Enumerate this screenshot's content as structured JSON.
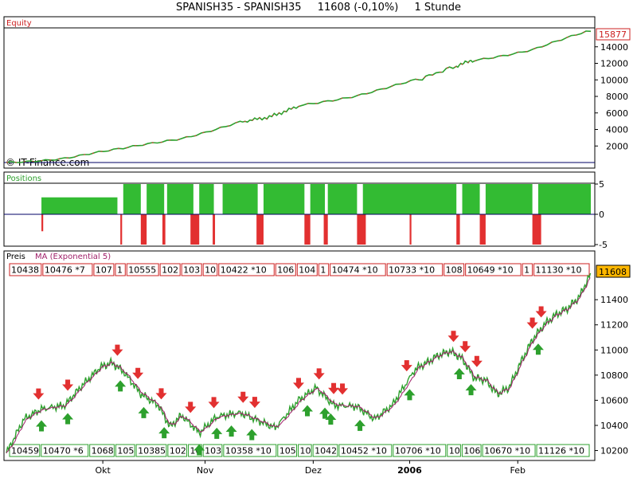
{
  "header": {
    "symbol": "SPANISH35 - SPANISH35",
    "price_change": "11608 (-0,10%)",
    "timeframe": "1 Stunde"
  },
  "colors": {
    "up_candle": "#2da02d",
    "down_candle": "#e23030",
    "positions_fill": "#33bb33",
    "positions_short": "#e23030",
    "ma_line": "#a0206a",
    "buy_arrow": "#2da02d",
    "sell_arrow": "#e23030",
    "last_price_box": "#ffb700"
  },
  "equity_panel": {
    "label": "Equity",
    "watermark": "© IT-Finance.com",
    "last_value": "15877",
    "y_ticks": [
      "14000",
      "12000",
      "10000",
      "8000",
      "6000",
      "4000",
      "2000"
    ]
  },
  "positions_panel": {
    "label": "Positions",
    "y_ticks": [
      "5",
      "0",
      "-5"
    ]
  },
  "price_panel": {
    "label": "Preis",
    "indicator": "MA (Exponential 5)",
    "last_value": "11608",
    "y_ticks": [
      "11400",
      "11200",
      "11000",
      "10800",
      "10600",
      "10400",
      "10200"
    ],
    "x_labels": [
      "Okt",
      "Nov",
      "Dez",
      "2006",
      "Feb"
    ],
    "top_boxes": [
      "10438",
      "10476 *7",
      "107",
      "1",
      "10555",
      "102",
      "103",
      "10",
      "10422 *10",
      "106",
      "104",
      "1",
      "10474 *10",
      "10733 *10",
      "108",
      "10649 *10",
      "1",
      "11130 *10"
    ],
    "bottom_boxes": [
      "10459",
      "10470 *6",
      "1068",
      "105",
      "10385",
      "102",
      "10",
      "103",
      "10358 *10",
      "105",
      "10",
      "1042",
      "10452 *10",
      "10706 *10",
      "10",
      "106",
      "10670 *10",
      "11126 *10"
    ]
  },
  "chart_data": [
    {
      "type": "line",
      "title": "Equity",
      "ylim": [
        0,
        16000
      ],
      "x": [
        0,
        10,
        20,
        30,
        40,
        45,
        50,
        60,
        70,
        77,
        80,
        90,
        100
      ],
      "values": [
        0,
        600,
        1600,
        3000,
        4900,
        5500,
        6800,
        8200,
        9900,
        11700,
        12400,
        13700,
        15877
      ]
    },
    {
      "type": "bar",
      "title": "Positions",
      "ylim": [
        -5,
        5
      ],
      "series": [
        {
          "values_long": [
            {
              "from": 6,
              "to": 19,
              "value": 2.8
            },
            {
              "from": 20,
              "to": 23,
              "value": 5
            },
            {
              "from": 24,
              "to": 27,
              "value": 5
            },
            {
              "from": 27.5,
              "to": 32,
              "value": 5
            },
            {
              "from": 33,
              "to": 35.5,
              "value": 5
            },
            {
              "from": 37,
              "to": 43,
              "value": 5
            },
            {
              "from": 44,
              "to": 51,
              "value": 5
            },
            {
              "from": 52,
              "to": 54.5,
              "value": 5
            },
            {
              "from": 55,
              "to": 60,
              "value": 5
            },
            {
              "from": 61,
              "to": 77,
              "value": 5
            },
            {
              "from": 78,
              "to": 81,
              "value": 5
            },
            {
              "from": 82,
              "to": 90,
              "value": 5
            },
            {
              "from": 91,
              "to": 100,
              "value": 5
            }
          ]
        },
        {
          "values_short": [
            {
              "from": 6,
              "to": 6.3,
              "value": -2.8
            },
            {
              "from": 19.5,
              "to": 19.8,
              "value": -5
            },
            {
              "from": 23,
              "to": 24,
              "value": -5
            },
            {
              "from": 26.7,
              "to": 27.2,
              "value": -5
            },
            {
              "from": 31.5,
              "to": 33,
              "value": -5
            },
            {
              "from": 35.3,
              "to": 35.7,
              "value": -5
            },
            {
              "from": 42.8,
              "to": 44,
              "value": -5
            },
            {
              "from": 51,
              "to": 52,
              "value": -5
            },
            {
              "from": 54.3,
              "to": 55,
              "value": -5
            },
            {
              "from": 60,
              "to": 61.5,
              "value": -5
            },
            {
              "from": 69,
              "to": 69.3,
              "value": -5
            },
            {
              "from": 77,
              "to": 77.6,
              "value": -5
            },
            {
              "from": 81,
              "to": 82,
              "value": -5
            },
            {
              "from": 90,
              "to": 91.5,
              "value": -5
            }
          ]
        }
      ]
    },
    {
      "type": "line",
      "title": "Preis",
      "ylim": [
        10140,
        11680
      ],
      "x": [
        0,
        3,
        6,
        10,
        13,
        16,
        18,
        20,
        23,
        26,
        28,
        30,
        33,
        36,
        40,
        43,
        46,
        50,
        53,
        56,
        60,
        63,
        66,
        70,
        72,
        74,
        76,
        78,
        80,
        82,
        84,
        86,
        88,
        90,
        92,
        94,
        96,
        98,
        100
      ],
      "values": [
        10180,
        10450,
        10530,
        10560,
        10720,
        10860,
        10900,
        10830,
        10650,
        10560,
        10390,
        10480,
        10340,
        10470,
        10500,
        10440,
        10380,
        10600,
        10700,
        10560,
        10550,
        10450,
        10560,
        10850,
        10900,
        10960,
        10990,
        10930,
        10780,
        10760,
        10650,
        10700,
        10900,
        11080,
        11200,
        11280,
        11330,
        11420,
        11608
      ]
    }
  ]
}
